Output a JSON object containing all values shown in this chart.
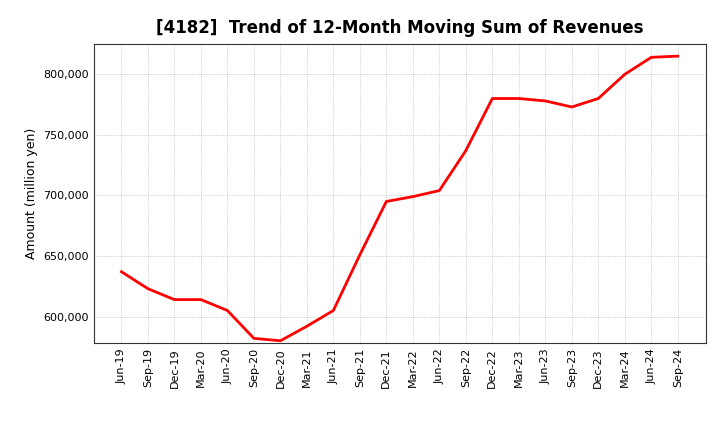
{
  "title": "[4182]  Trend of 12-Month Moving Sum of Revenues",
  "ylabel": "Amount (million yen)",
  "line_color": "#FF0000",
  "line_width": 2.0,
  "background_color": "#FFFFFF",
  "plot_background_color": "#FFFFFF",
  "grid_color": "#999999",
  "ylim": [
    578000,
    825000
  ],
  "yticks": [
    600000,
    650000,
    700000,
    750000,
    800000
  ],
  "x_labels": [
    "Jun-19",
    "Sep-19",
    "Dec-19",
    "Mar-20",
    "Jun-20",
    "Sep-20",
    "Dec-20",
    "Mar-21",
    "Jun-21",
    "Sep-21",
    "Dec-21",
    "Mar-22",
    "Jun-22",
    "Sep-22",
    "Dec-22",
    "Mar-23",
    "Jun-23",
    "Sep-23",
    "Dec-23",
    "Mar-24",
    "Jun-24",
    "Sep-24"
  ],
  "values": [
    637000,
    623000,
    614000,
    614000,
    605000,
    582000,
    580000,
    592000,
    605000,
    651000,
    695000,
    699000,
    704000,
    737000,
    780000,
    780000,
    778000,
    773000,
    780000,
    800000,
    814000,
    815000
  ],
  "title_fontsize": 12,
  "tick_fontsize": 8,
  "ylabel_fontsize": 9
}
